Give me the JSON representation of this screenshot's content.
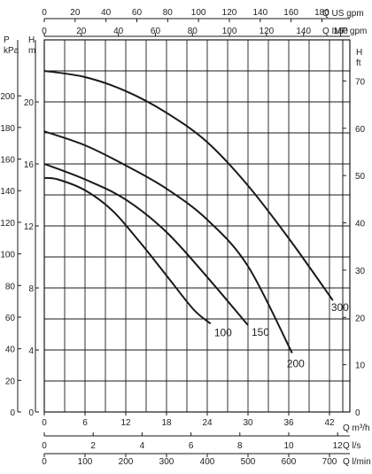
{
  "chart_data": {
    "type": "line",
    "x_axis": {
      "label": "Q m³/h",
      "range": [
        0,
        45
      ],
      "ticks": [
        0,
        6,
        12,
        18,
        24,
        30,
        36,
        42
      ]
    },
    "secondary_x_axes": [
      {
        "label": "Q l/s",
        "range": [
          0,
          12.5
        ],
        "ticks": [
          0,
          2,
          4,
          6,
          8,
          10,
          12
        ]
      },
      {
        "label": "Q l/min",
        "range": [
          0,
          750
        ],
        "ticks": [
          0,
          100,
          200,
          300,
          400,
          500,
          600,
          700
        ]
      },
      {
        "label": "Q US gpm",
        "range": [
          0,
          198.1
        ],
        "ticks": [
          0,
          20,
          40,
          60,
          80,
          100,
          120,
          140,
          160,
          180
        ]
      },
      {
        "label": "Q IMP gpm",
        "range": [
          0,
          165
        ],
        "ticks": [
          0,
          20,
          40,
          60,
          80,
          100,
          120,
          140,
          160
        ]
      }
    ],
    "y_axis": {
      "label": "H m",
      "range": [
        0,
        24
      ],
      "ticks": [
        0,
        4,
        8,
        12,
        16,
        20
      ]
    },
    "secondary_y_axes": [
      {
        "label": "P kPa",
        "range": [
          0,
          235.4
        ],
        "ticks": [
          0,
          20,
          40,
          60,
          80,
          100,
          120,
          140,
          160,
          180,
          200
        ]
      },
      {
        "label": "H ft",
        "range": [
          0,
          78.7
        ],
        "ticks": [
          0,
          10,
          20,
          30,
          40,
          50,
          60,
          70
        ]
      }
    ],
    "grid": true,
    "series": [
      {
        "name": "100",
        "x": [
          0,
          2,
          6,
          10,
          14,
          18,
          22,
          24.5
        ],
        "y": [
          15.1,
          15.0,
          14.3,
          13.0,
          11.0,
          8.8,
          6.6,
          5.7
        ]
      },
      {
        "name": "150",
        "x": [
          0,
          6,
          12,
          18,
          24,
          30
        ],
        "y": [
          16.0,
          15.0,
          13.7,
          11.6,
          8.7,
          5.6
        ]
      },
      {
        "name": "200",
        "x": [
          0,
          6,
          12,
          18,
          24,
          30,
          36.5
        ],
        "y": [
          18.1,
          17.2,
          15.9,
          14.4,
          12.4,
          9.4,
          3.8
        ]
      },
      {
        "name": "300",
        "x": [
          0,
          6,
          12,
          18,
          24,
          30,
          36,
          42.5
        ],
        "y": [
          22.0,
          21.6,
          20.7,
          19.3,
          17.4,
          14.6,
          11.2,
          7.2
        ]
      }
    ],
    "curve_labels": [
      "100",
      "150",
      "200",
      "300"
    ]
  }
}
